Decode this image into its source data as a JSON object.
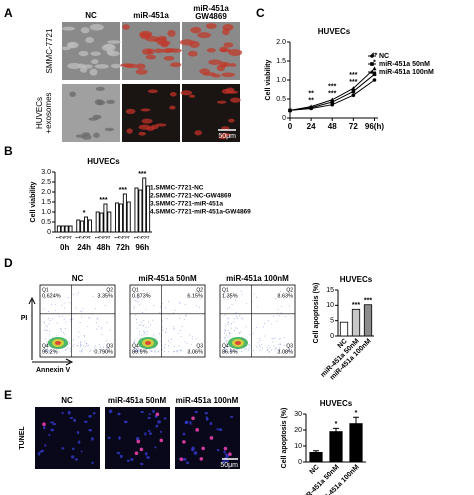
{
  "panel_letters": [
    "A",
    "C",
    "B",
    "D",
    "E"
  ],
  "panel_a": {
    "columns": [
      [
        "NC"
      ],
      [
        "miR-451a"
      ],
      [
        "miR-451a",
        "GW4869"
      ]
    ],
    "rows": [
      [
        "SMMC-7721"
      ],
      [
        "HUVECs",
        "+exosomes"
      ]
    ],
    "scale_bar": "50μm"
  },
  "panel_d": {
    "columns": [
      "NC",
      "miR-451a 50nM",
      "miR-451a 100nM"
    ],
    "quadrant_names": [
      "Q1",
      "Q2",
      "Q3",
      "Q4"
    ],
    "quadrant_values": [
      [
        "0.624%",
        "3.35%",
        "0.790%",
        "95.2%"
      ],
      [
        "0.873%",
        "6.15%",
        "3.06%",
        "89.9%"
      ],
      [
        "1.35%",
        "8.63%",
        "3.08%",
        "86.9%"
      ]
    ],
    "y_label": "PI",
    "x_label": "Annexin V"
  },
  "panel_e": {
    "columns": [
      "NC",
      "miR-451a 50nM",
      "miR-451a 100nM"
    ],
    "row_label": "TUNEL",
    "scale_bar": "50μm"
  },
  "chart_data": [
    {
      "type": "line",
      "title": "HUVECs",
      "y_label": "Cell viability",
      "x": [
        0,
        24,
        48,
        72,
        96
      ],
      "xlim": [
        0,
        100
      ],
      "xticks": [
        0,
        24,
        48,
        72,
        {
          "value": 96,
          "label": "96(h)"
        }
      ],
      "ylim": [
        0,
        2
      ],
      "yticks": [
        0,
        0.5,
        {
          "value": 1,
          "label": "1.0"
        },
        1.5,
        {
          "value": 2,
          "label": "2.0"
        }
      ],
      "series": [
        {
          "name": "NC",
          "color": "#000000",
          "values": [
            0.2,
            0.25,
            0.35,
            0.6,
            1.0
          ]
        },
        {
          "name": "miR-451a 50nM",
          "color": "#000000",
          "values": [
            0.2,
            0.27,
            0.42,
            0.7,
            1.15
          ]
        },
        {
          "name": "miR-451a 100nM",
          "color": "#000000",
          "values": [
            0.2,
            0.3,
            0.48,
            0.78,
            1.3
          ]
        }
      ],
      "annotations": [
        {
          "x": 24,
          "labels": [
            "**",
            "**"
          ]
        },
        {
          "x": 48,
          "labels": [
            "***",
            "***"
          ]
        },
        {
          "x": 72,
          "labels": [
            "***",
            "***"
          ]
        },
        {
          "x": 96,
          "labels": [
            "*",
            "**"
          ]
        }
      ]
    },
    {
      "type": "bar",
      "title": "HUVECs",
      "y_label": "Cell viability",
      "categories": [
        "0h",
        "24h",
        "48h",
        "72h",
        "96h"
      ],
      "bar_numbers": [
        "1",
        "2",
        "3",
        "4"
      ],
      "ylim": [
        0,
        3
      ],
      "yticks": [
        0,
        0.5,
        {
          "value": 1,
          "label": "1.0"
        },
        1.5,
        {
          "value": 2,
          "label": "2.0"
        },
        2.5,
        {
          "value": 3,
          "label": "3.0"
        }
      ],
      "series": [
        {
          "name": "1.SMMC-7721-NC",
          "color": "#ffffff",
          "values": [
            0.3,
            0.6,
            1.0,
            1.45,
            2.2
          ]
        },
        {
          "name": "2.SMMC-7721-NC-GW4869",
          "color": "#ffffff",
          "values": [
            0.3,
            0.55,
            0.95,
            1.4,
            2.1
          ]
        },
        {
          "name": "3.SMMC-7721-miR-451a",
          "color": "#ffffff",
          "values": [
            0.3,
            0.75,
            1.4,
            1.9,
            2.7
          ]
        },
        {
          "name": "4.SMMC-7721-miR-451a-GW4869",
          "color": "#ffffff",
          "values": [
            0.3,
            0.6,
            1.0,
            1.5,
            2.3
          ]
        }
      ],
      "annotations": [
        null,
        "*",
        "***",
        "***",
        "***"
      ]
    },
    {
      "type": "bar",
      "title": "HUVECs",
      "y_label": "Cell apoptosis (%)",
      "categories": [
        "NC",
        "miR-451a 50nM",
        "miR-451a 100nM"
      ],
      "values": [
        4.5,
        8.7,
        10.2
      ],
      "colors": [
        "#ffffff",
        "#c8c8c8",
        "#8c8c8c"
      ],
      "ylim": [
        0,
        15
      ],
      "yticks": [
        0,
        5,
        10,
        15
      ],
      "annotations": [
        null,
        "***",
        "***"
      ]
    },
    {
      "type": "bar",
      "title": "HUVECs",
      "y_label": "Cell apoptosis (%)",
      "categories": [
        "NC",
        "miR-451a 50nM",
        "miR-451a 100nM"
      ],
      "values": [
        6,
        19,
        24
      ],
      "errors": [
        1,
        2,
        4
      ],
      "colors": [
        "#000000",
        "#000000",
        "#000000"
      ],
      "ylim": [
        0,
        30
      ],
      "yticks": [
        0,
        10,
        20,
        30
      ],
      "annotations": [
        null,
        "*",
        "*"
      ]
    }
  ]
}
